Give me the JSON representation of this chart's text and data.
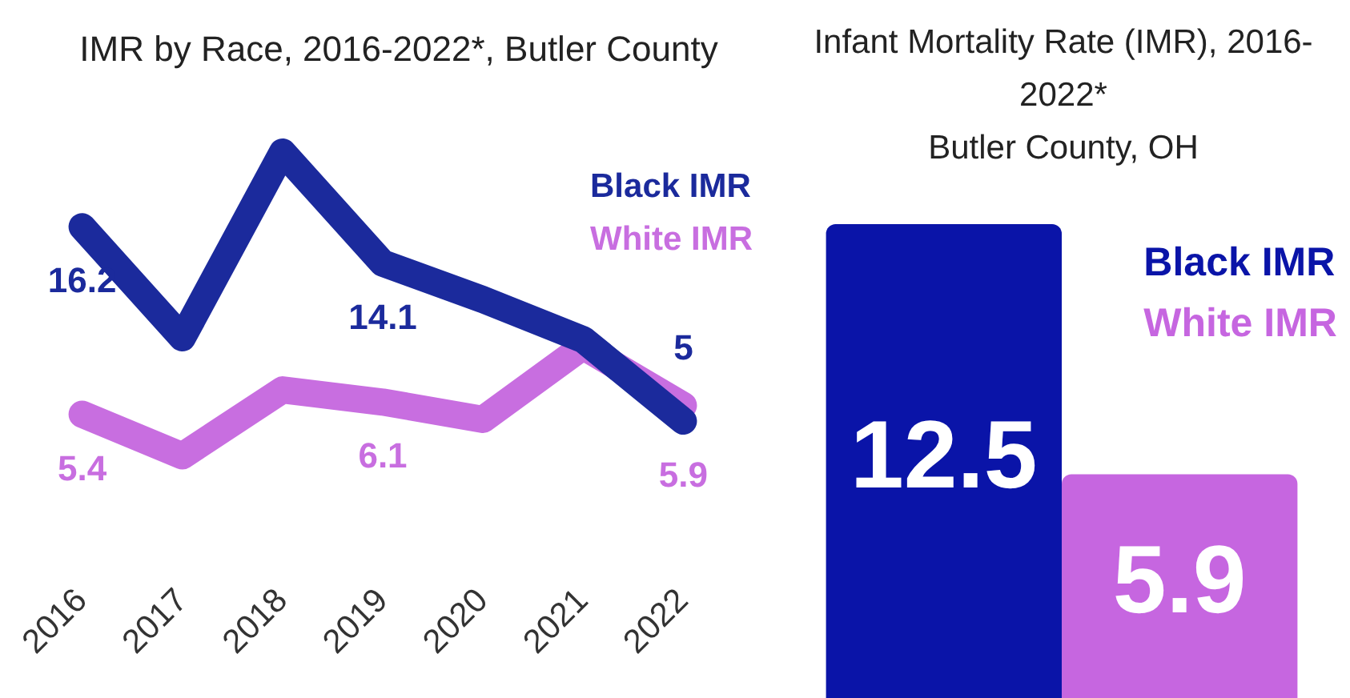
{
  "chart_data": [
    {
      "type": "line",
      "title": "IMR by Race, 2016-2022*, Butler County",
      "categories": [
        "2016",
        "2017",
        "2018",
        "2019",
        "2020",
        "2021",
        "2022"
      ],
      "series": [
        {
          "name": "Black IMR",
          "color": "#1b2a9c",
          "values": [
            16.2,
            9.8,
            20.5,
            14.1,
            12.0,
            9.7,
            5
          ],
          "value_labels": [
            "16.2",
            null,
            null,
            "14.1",
            null,
            null,
            "5"
          ]
        },
        {
          "name": "White IMR",
          "color": "#c86ee0",
          "values": [
            5.4,
            3.0,
            6.8,
            6.1,
            5.1,
            9.3,
            5.9
          ],
          "value_labels": [
            "5.4",
            null,
            null,
            "6.1",
            null,
            null,
            "5.9"
          ]
        }
      ],
      "legend": "top right"
    },
    {
      "type": "bar",
      "title": "Infant Mortality Rate (IMR), 2016-2022*",
      "subtitle": "Butler County, OH",
      "categories": [
        null
      ],
      "series": [
        {
          "name": "Black IMR",
          "color": "#0a14a8",
          "values": [
            12.5
          ]
        },
        {
          "name": "White IMR",
          "color": "#c666e0",
          "values": [
            5.9
          ]
        }
      ],
      "data_labels": true,
      "legend": "top right"
    }
  ]
}
